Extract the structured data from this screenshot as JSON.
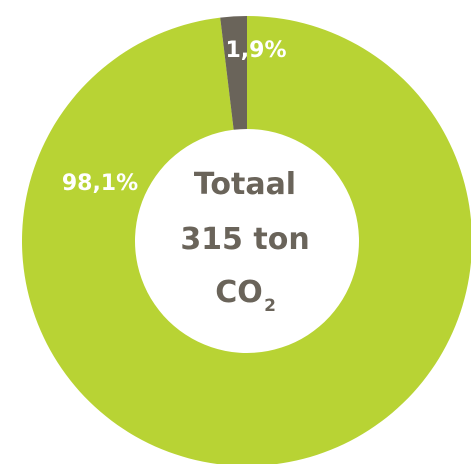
{
  "chart_data": {
    "type": "pie",
    "donut": true,
    "slices": [
      {
        "label": "98,1%",
        "value": 98.1,
        "color": "#b8d334"
      },
      {
        "label": "1,9%",
        "value": 1.9,
        "color": "#6a645a"
      }
    ],
    "center_text": {
      "line1": "Totaal",
      "line2": "315 ton",
      "line3_main": "CO",
      "line3_sub": "2"
    },
    "center_text_color": "#6a645a",
    "label_color": "#ffffff"
  }
}
